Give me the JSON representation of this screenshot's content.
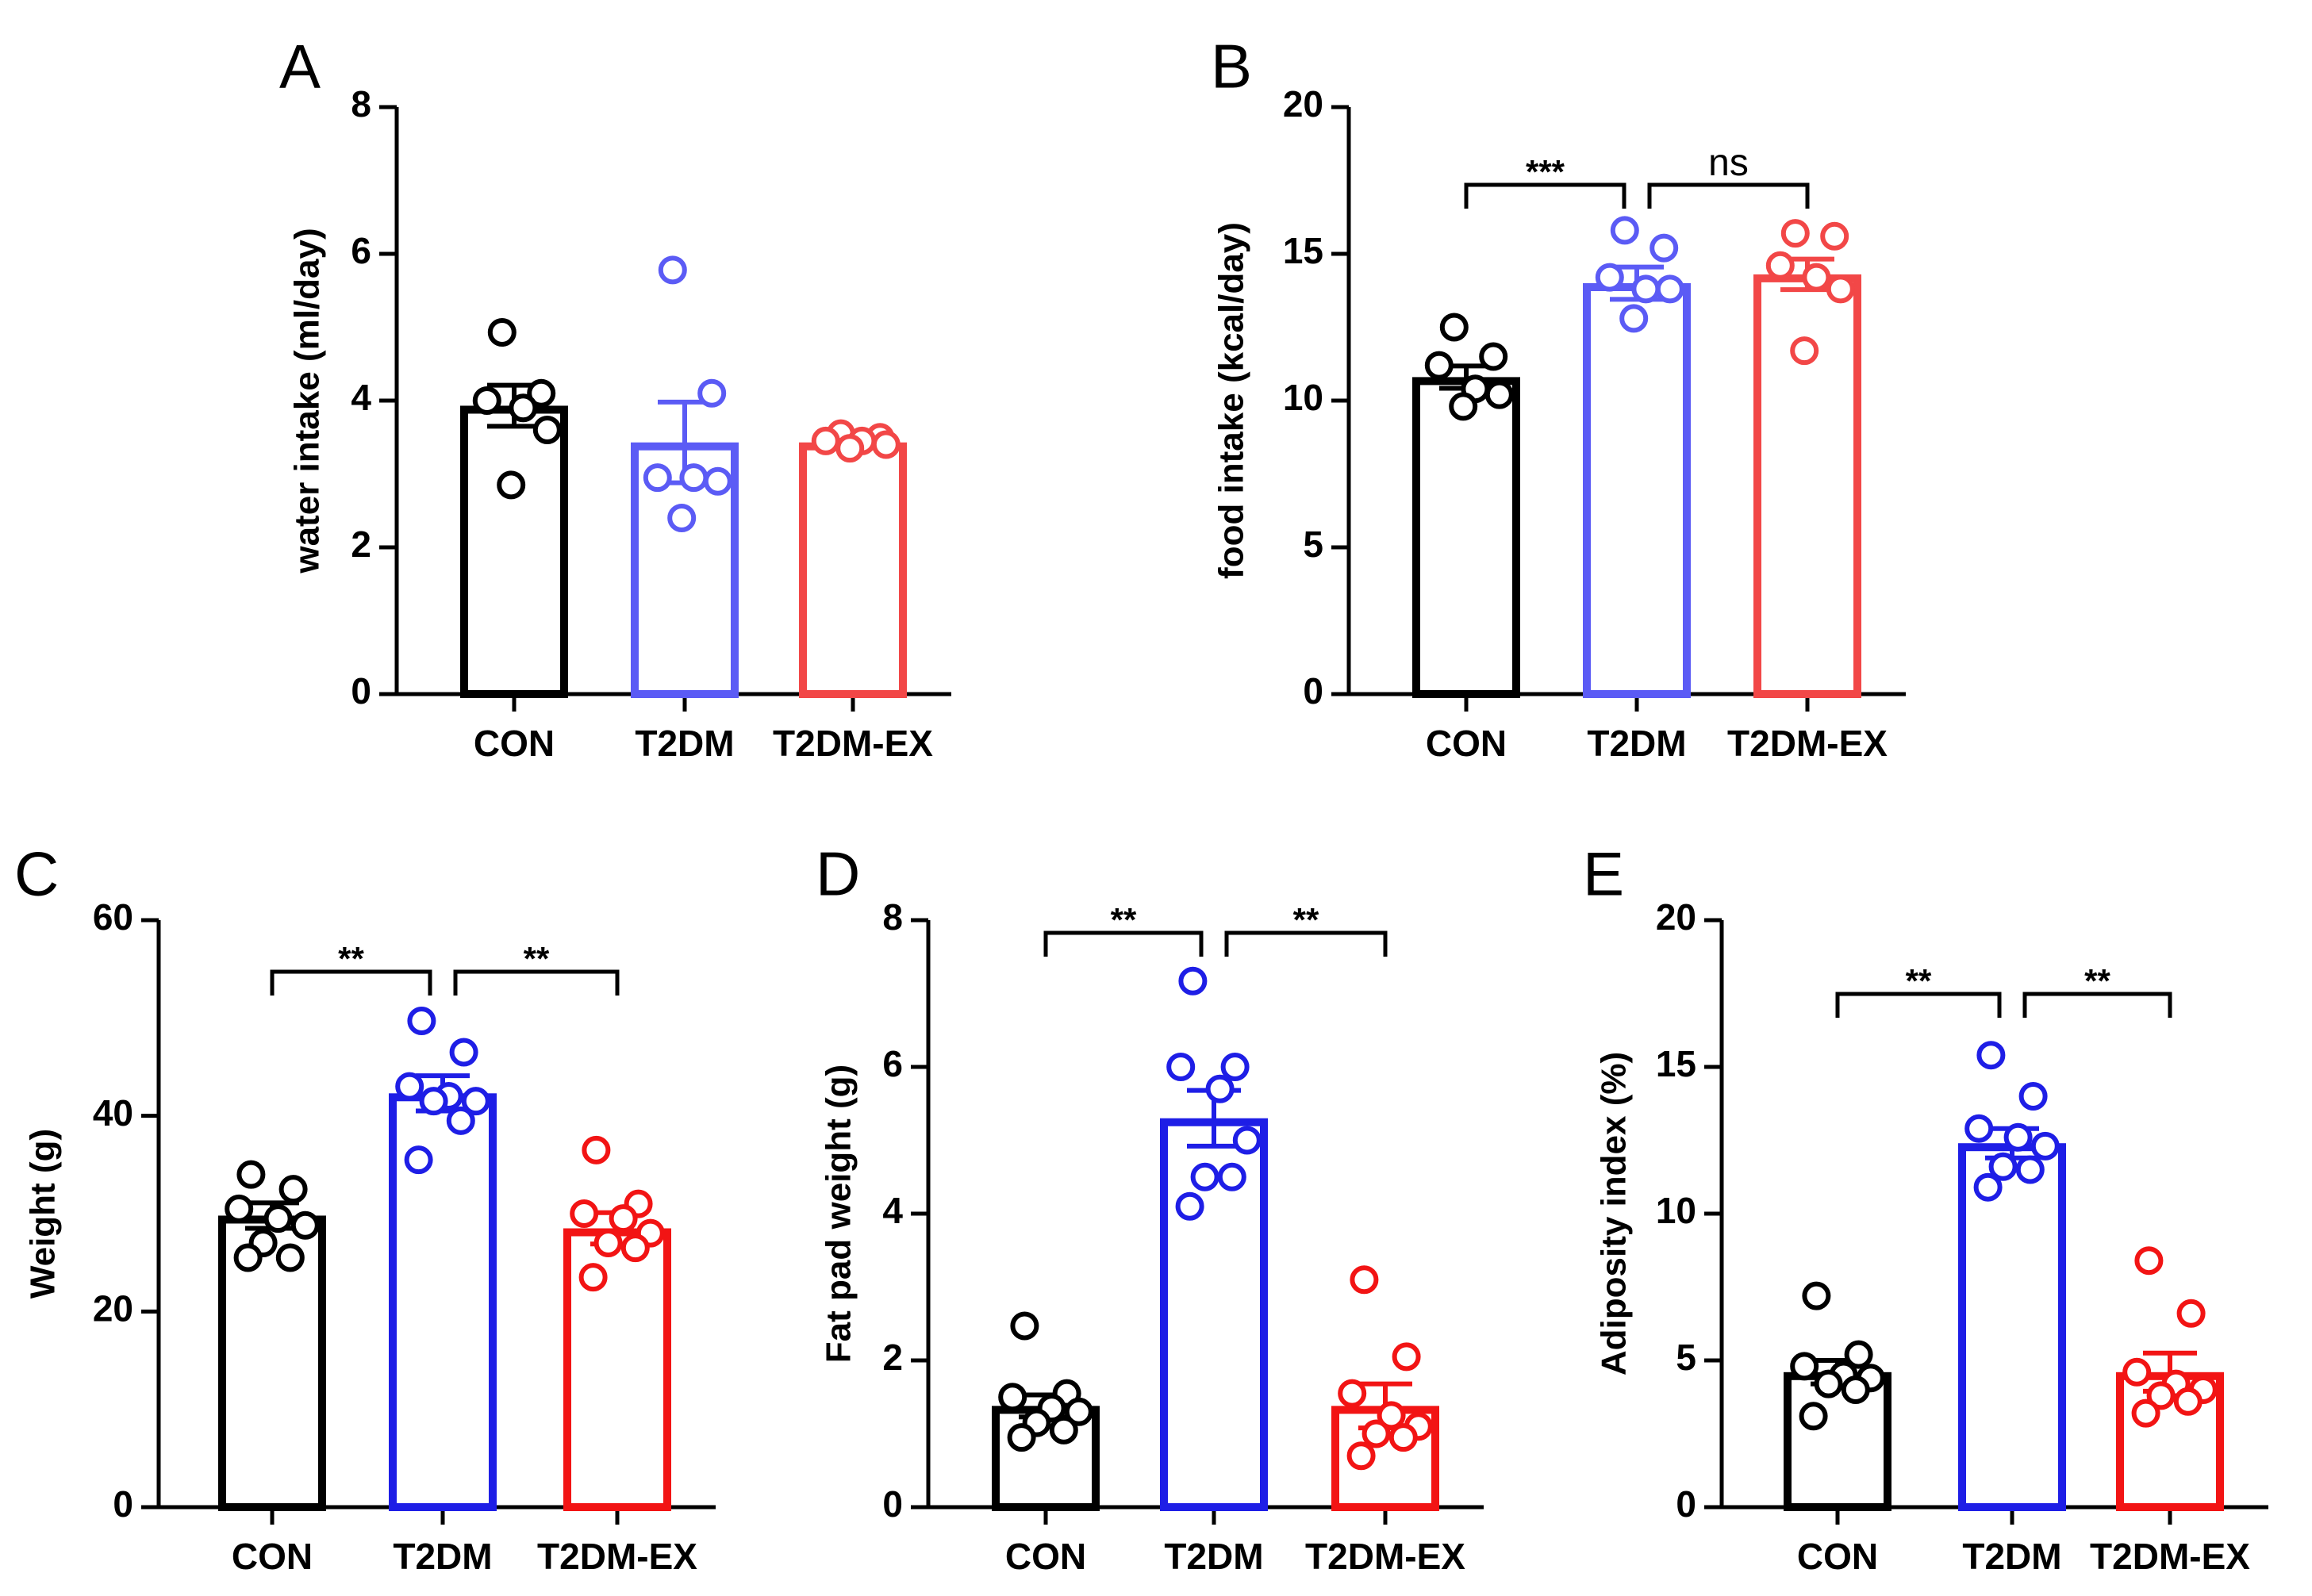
{
  "chart_data": [
    {
      "panel": "A",
      "type": "bar",
      "ylabel": "water intake (ml/day)",
      "ylim": [
        0,
        8
      ],
      "yticks": [
        0,
        2,
        4,
        6,
        8
      ],
      "categories": [
        "CON",
        "T2DM",
        "T2DM-EX"
      ],
      "colors": [
        "#000000",
        "#5B5BF5",
        "#F24747"
      ],
      "means": [
        3.93,
        3.43,
        3.43
      ],
      "sem": [
        0.28,
        0.55,
        0.05
      ],
      "points": [
        [
          4.93,
          4.1,
          4.0,
          3.9,
          3.6,
          2.85
        ],
        [
          5.78,
          4.1,
          2.95,
          2.95,
          2.9,
          2.4
        ],
        [
          3.55,
          3.5,
          3.45,
          3.45,
          3.4,
          3.35
        ]
      ],
      "comparisons": []
    },
    {
      "panel": "B",
      "type": "bar",
      "ylabel": "food intake (kcal/day)",
      "ylim": [
        0,
        20
      ],
      "yticks": [
        0,
        5,
        10,
        15,
        20
      ],
      "categories": [
        "CON",
        "T2DM",
        "T2DM-EX"
      ],
      "colors": [
        "#000000",
        "#5B5BF5",
        "#F24747"
      ],
      "means": [
        10.8,
        14.0,
        14.3
      ],
      "sem": [
        0.38,
        0.55,
        0.52
      ],
      "points": [
        [
          12.5,
          11.5,
          11.2,
          10.4,
          10.2,
          9.8
        ],
        [
          15.8,
          15.2,
          14.2,
          13.8,
          13.8,
          12.8
        ],
        [
          15.7,
          15.6,
          14.6,
          14.2,
          13.8,
          11.7
        ]
      ],
      "comparisons": [
        {
          "from": 0,
          "to": 1,
          "label": "***"
        },
        {
          "from": 1,
          "to": 2,
          "label": "ns"
        }
      ]
    },
    {
      "panel": "C",
      "type": "bar",
      "ylabel": "Weight (g)",
      "ylim": [
        0,
        60
      ],
      "yticks": [
        0,
        20,
        40,
        60
      ],
      "categories": [
        "CON",
        "T2DM",
        "T2DM-EX"
      ],
      "colors": [
        "#000000",
        "#1E1EE6",
        "#F21414"
      ],
      "means": [
        29.8,
        42.3,
        28.5
      ],
      "sem": [
        1.3,
        1.8,
        1.6
      ],
      "points": [
        [
          34.0,
          32.5,
          30.5,
          29.5,
          28.8,
          27.0,
          25.5,
          25.5
        ],
        [
          49.7,
          46.5,
          43.0,
          42.0,
          41.5,
          41.5,
          39.5,
          35.5
        ],
        [
          36.5,
          31.0,
          30.0,
          29.5,
          28.0,
          27.0,
          26.5,
          23.5
        ]
      ],
      "comparisons": [
        {
          "from": 0,
          "to": 1,
          "label": "**"
        },
        {
          "from": 1,
          "to": 2,
          "label": "**"
        }
      ]
    },
    {
      "panel": "D",
      "type": "bar",
      "ylabel": "Fat pad weight (g)",
      "ylim": [
        0,
        8
      ],
      "yticks": [
        0,
        2,
        4,
        6,
        8
      ],
      "categories": [
        "CON",
        "T2DM",
        "T2DM-EX"
      ],
      "colors": [
        "#000000",
        "#1E1EE6",
        "#F21414"
      ],
      "means": [
        1.38,
        5.3,
        1.38
      ],
      "sem": [
        0.15,
        0.38,
        0.3
      ],
      "points": [
        [
          2.47,
          1.55,
          1.5,
          1.35,
          1.3,
          1.15,
          1.05,
          0.95
        ],
        [
          7.17,
          6.0,
          6.0,
          5.7,
          5.0,
          4.5,
          4.5,
          4.1
        ],
        [
          3.1,
          2.05,
          1.55,
          1.25,
          1.1,
          1.0,
          0.95,
          0.7
        ]
      ],
      "comparisons": [
        {
          "from": 0,
          "to": 1,
          "label": "**"
        },
        {
          "from": 1,
          "to": 2,
          "label": "**"
        }
      ]
    },
    {
      "panel": "E",
      "type": "bar",
      "ylabel": "Adiposity index (%)",
      "ylim": [
        0,
        20
      ],
      "yticks": [
        0,
        5,
        10,
        15,
        20
      ],
      "categories": [
        "CON",
        "T2DM",
        "T2DM-EX"
      ],
      "colors": [
        "#000000",
        "#1E1EE6",
        "#F21414"
      ],
      "means": [
        4.6,
        12.4,
        4.6
      ],
      "sem": [
        0.4,
        0.5,
        0.65
      ],
      "points": [
        [
          7.2,
          5.2,
          4.8,
          4.5,
          4.4,
          4.2,
          4.0,
          3.1
        ],
        [
          15.4,
          14.0,
          12.9,
          12.6,
          12.3,
          11.6,
          11.5,
          10.9
        ],
        [
          8.4,
          6.6,
          4.6,
          4.2,
          4.0,
          3.8,
          3.6,
          3.2
        ]
      ],
      "comparisons": [
        {
          "from": 0,
          "to": 1,
          "label": "**"
        },
        {
          "from": 1,
          "to": 2,
          "label": "**"
        }
      ]
    }
  ]
}
